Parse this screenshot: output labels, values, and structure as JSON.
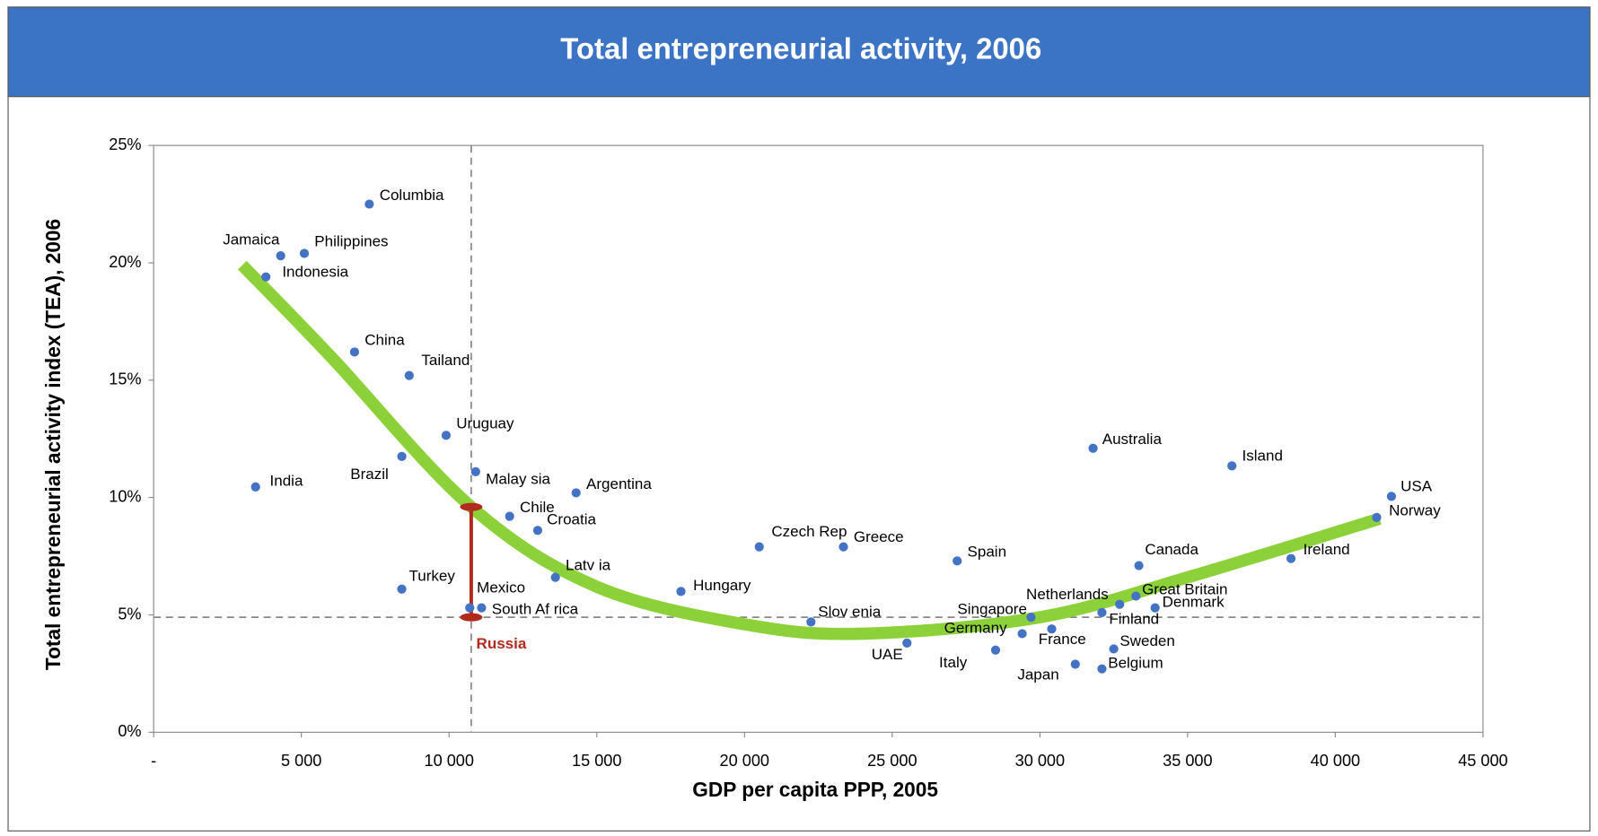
{
  "chart_data": {
    "type": "scatter",
    "title": "Total entrepreneurial activity, 2006",
    "xlabel": "GDP per capita PPP, 2005",
    "ylabel": "Total entrepreneurial activity index (TEA), 2006",
    "color": "#4472c4",
    "categories": [
      "Columbia",
      "Jamaica",
      "Philippines",
      "Indonesia",
      "China",
      "Tailand",
      "Uruguay",
      "Brazil",
      "India",
      "Malay sia",
      "Argentina",
      "Chile",
      "Croatia",
      "Latv ia",
      "Turkey",
      "Mexico",
      "South Af rica",
      "Hungary",
      "Czech Rep",
      "Greece",
      "Slov enia",
      "UAE",
      "Spain",
      "Italy",
      "Germany",
      "Singapore",
      "France",
      "Japan",
      "Australia",
      "Belgium",
      "Finland",
      "Sweden",
      "Netherlands",
      "Great Britain",
      "Canada",
      "Denmark",
      "Island",
      "Ireland",
      "Norway",
      "USA"
    ],
    "x": [
      7300,
      4300,
      5100,
      3800,
      6800,
      8650,
      9900,
      8400,
      3450,
      10900,
      14300,
      12050,
      13000,
      13600,
      8400,
      10700,
      11100,
      17850,
      20500,
      23350,
      22250,
      25500,
      27200,
      28500,
      29400,
      29700,
      30400,
      31200,
      31800,
      32100,
      32100,
      32500,
      32700,
      33250,
      33350,
      33900,
      36500,
      38500,
      41400,
      41900
    ],
    "values": [
      22.5,
      20.3,
      20.4,
      19.4,
      16.2,
      15.2,
      12.65,
      11.75,
      10.45,
      11.1,
      10.2,
      9.2,
      8.6,
      6.6,
      6.1,
      5.3,
      5.3,
      6.0,
      7.9,
      7.9,
      4.7,
      3.8,
      7.3,
      3.5,
      4.2,
      4.9,
      4.4,
      2.9,
      12.1,
      2.7,
      5.1,
      3.55,
      5.45,
      5.8,
      7.1,
      5.3,
      11.35,
      7.4,
      9.15,
      10.05
    ],
    "trend": {
      "color": "#8dd13a",
      "x": [
        3000,
        6000,
        10750,
        15000,
        20000,
        24000,
        30000,
        35000,
        41500
      ],
      "values": [
        19.9,
        16.0,
        9.6,
        6.2,
        4.6,
        4.2,
        4.9,
        6.6,
        9.1
      ]
    },
    "annotation": {
      "label": "Russia",
      "color": "#b22a1e",
      "x": 10750,
      "value": 4.9,
      "trend_value": 9.6
    },
    "xlim": [
      0,
      45000
    ],
    "ylim": [
      0,
      25
    ],
    "xticks": [
      {
        "value": 0,
        "label": "-"
      },
      {
        "value": 5000,
        "label": "5 000"
      },
      {
        "value": 10000,
        "label": "10 000"
      },
      {
        "value": 15000,
        "label": "15 000"
      },
      {
        "value": 20000,
        "label": "20 000"
      },
      {
        "value": 25000,
        "label": "25 000"
      },
      {
        "value": 30000,
        "label": "30 000"
      },
      {
        "value": 35000,
        "label": "35 000"
      },
      {
        "value": 40000,
        "label": "40 000"
      },
      {
        "value": 45000,
        "label": "45 000"
      }
    ],
    "yticks": [
      {
        "value": 0,
        "label": "0%"
      },
      {
        "value": 5,
        "label": "5%"
      },
      {
        "value": 10,
        "label": "10%"
      },
      {
        "value": 15,
        "label": "15%"
      },
      {
        "value": 20,
        "label": "20%"
      },
      {
        "value": 25,
        "label": "25%"
      }
    ]
  }
}
